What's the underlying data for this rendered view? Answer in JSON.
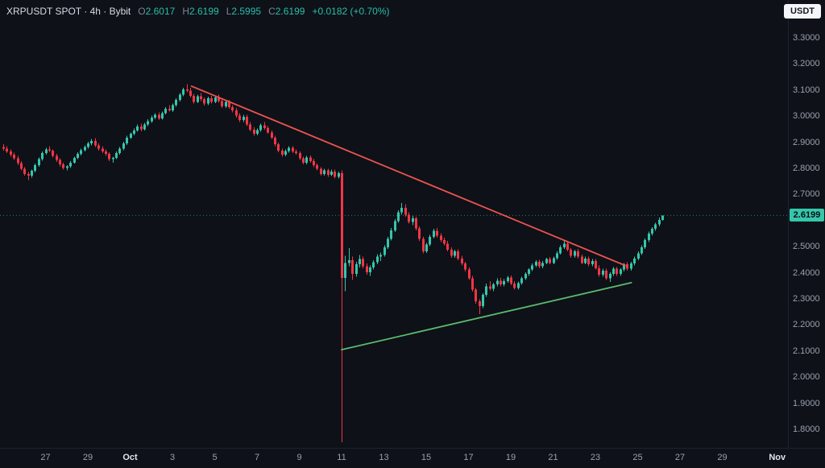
{
  "header": {
    "symbol_text": "XRPUSDT SPOT · 4h · Bybit",
    "ohlc": {
      "o_label": "O",
      "o_value": "2.6017",
      "h_label": "H",
      "h_value": "2.6199",
      "l_label": "L",
      "l_value": "2.5995",
      "c_label": "C",
      "c_value": "2.6199",
      "change": "+0.0182 (+0.70%)"
    }
  },
  "currency_button": {
    "label": "USDT"
  },
  "chart_data": {
    "type": "candlestick",
    "symbol": "XRPUSDT",
    "market": "SPOT",
    "exchange": "Bybit",
    "interval": "4h",
    "last_price": 2.6199,
    "last_price_label": "2.6199",
    "candles_per_day": 6,
    "price_axis": {
      "min": 1.729,
      "max": 3.445,
      "ticks": [
        {
          "value": 3.3,
          "label": "3.3000"
        },
        {
          "value": 3.2,
          "label": "3.2000"
        },
        {
          "value": 3.1,
          "label": "3.1000"
        },
        {
          "value": 3.0,
          "label": "3.0000"
        },
        {
          "value": 2.9,
          "label": "2.9000"
        },
        {
          "value": 2.8,
          "label": "2.8000"
        },
        {
          "value": 2.7,
          "label": "2.7000"
        },
        {
          "value": 2.5,
          "label": "2.5000"
        },
        {
          "value": 2.4,
          "label": "2.4000"
        },
        {
          "value": 2.3,
          "label": "2.3000"
        },
        {
          "value": 2.2,
          "label": "2.2000"
        },
        {
          "value": 2.1,
          "label": "2.1000"
        },
        {
          "value": 2.0,
          "label": "2.0000"
        },
        {
          "value": 1.9,
          "label": "1.9000"
        },
        {
          "value": 1.8,
          "label": "1.8000"
        }
      ]
    },
    "time_axis": {
      "ticks": [
        {
          "label": "27",
          "day": 2
        },
        {
          "label": "29",
          "day": 4
        },
        {
          "label": "Oct",
          "day": 6,
          "major": true
        },
        {
          "label": "3",
          "day": 8
        },
        {
          "label": "5",
          "day": 10
        },
        {
          "label": "7",
          "day": 12
        },
        {
          "label": "9",
          "day": 14
        },
        {
          "label": "11",
          "day": 16
        },
        {
          "label": "13",
          "day": 18
        },
        {
          "label": "15",
          "day": 20
        },
        {
          "label": "17",
          "day": 22
        },
        {
          "label": "19",
          "day": 24
        },
        {
          "label": "21",
          "day": 26
        },
        {
          "label": "23",
          "day": 28
        },
        {
          "label": "25",
          "day": 30
        },
        {
          "label": "27",
          "day": 32
        },
        {
          "label": "29",
          "day": 34
        },
        {
          "label": "Nov",
          "day": 36.6,
          "major": true
        }
      ]
    },
    "trendlines": [
      {
        "name": "descending-trendline",
        "color": "#ef5350",
        "from": {
          "day": 8.9,
          "price": 3.115
        },
        "to": {
          "day": 29.4,
          "price": 2.428
        }
      },
      {
        "name": "ascending-trendline",
        "color": "#5bba6f",
        "from": {
          "day": 16.0,
          "price": 2.105
        },
        "to": {
          "day": 29.7,
          "price": 2.362
        }
      }
    ],
    "colors": {
      "up": "#34c7ab",
      "down": "#f23645",
      "last_price_line": "#34c7ab",
      "up_text": "#2abda8"
    },
    "candles": [
      [
        2.882,
        2.892,
        2.868,
        2.875
      ],
      [
        2.875,
        2.885,
        2.858,
        2.865
      ],
      [
        2.865,
        2.872,
        2.845,
        2.852
      ],
      [
        2.852,
        2.86,
        2.832,
        2.838
      ],
      [
        2.838,
        2.848,
        2.812,
        2.82
      ],
      [
        2.82,
        2.828,
        2.792,
        2.798
      ],
      [
        2.798,
        2.805,
        2.772,
        2.778
      ],
      [
        2.778,
        2.786,
        2.755,
        2.772
      ],
      [
        2.772,
        2.795,
        2.765,
        2.79
      ],
      [
        2.79,
        2.818,
        2.785,
        2.812
      ],
      [
        2.812,
        2.842,
        2.806,
        2.836
      ],
      [
        2.836,
        2.865,
        2.83,
        2.858
      ],
      [
        2.858,
        2.878,
        2.852,
        2.872
      ],
      [
        2.872,
        2.885,
        2.862,
        2.868
      ],
      [
        2.868,
        2.872,
        2.842,
        2.848
      ],
      [
        2.848,
        2.855,
        2.825,
        2.832
      ],
      [
        2.832,
        2.838,
        2.808,
        2.815
      ],
      [
        2.815,
        2.822,
        2.795,
        2.802
      ],
      [
        2.802,
        2.812,
        2.792,
        2.808
      ],
      [
        2.808,
        2.828,
        2.802,
        2.822
      ],
      [
        2.822,
        2.845,
        2.818,
        2.84
      ],
      [
        2.84,
        2.862,
        2.835,
        2.856
      ],
      [
        2.856,
        2.875,
        2.85,
        2.87
      ],
      [
        2.87,
        2.888,
        2.865,
        2.882
      ],
      [
        2.882,
        2.902,
        2.876,
        2.895
      ],
      [
        2.895,
        2.912,
        2.888,
        2.905
      ],
      [
        2.905,
        2.915,
        2.882,
        2.888
      ],
      [
        2.888,
        2.895,
        2.868,
        2.875
      ],
      [
        2.875,
        2.885,
        2.858,
        2.865
      ],
      [
        2.865,
        2.872,
        2.848,
        2.855
      ],
      [
        2.855,
        2.862,
        2.828,
        2.835
      ],
      [
        2.835,
        2.845,
        2.822,
        2.84
      ],
      [
        2.84,
        2.865,
        2.835,
        2.858
      ],
      [
        2.858,
        2.882,
        2.852,
        2.875
      ],
      [
        2.875,
        2.902,
        2.87,
        2.895
      ],
      [
        2.895,
        2.925,
        2.89,
        2.918
      ],
      [
        2.918,
        2.938,
        2.912,
        2.932
      ],
      [
        2.932,
        2.952,
        2.926,
        2.945
      ],
      [
        2.945,
        2.968,
        2.94,
        2.96
      ],
      [
        2.96,
        2.972,
        2.942,
        2.95
      ],
      [
        2.95,
        2.975,
        2.945,
        2.968
      ],
      [
        2.968,
        2.988,
        2.962,
        2.98
      ],
      [
        2.98,
        3.002,
        2.975,
        2.995
      ],
      [
        2.995,
        3.012,
        2.988,
        3.005
      ],
      [
        3.005,
        3.015,
        2.985,
        2.992
      ],
      [
        2.992,
        3.018,
        2.986,
        3.012
      ],
      [
        3.012,
        3.035,
        3.006,
        3.028
      ],
      [
        3.028,
        3.042,
        3.018,
        3.022
      ],
      [
        3.022,
        3.048,
        3.016,
        3.042
      ],
      [
        3.042,
        3.068,
        3.036,
        3.062
      ],
      [
        3.062,
        3.088,
        3.056,
        3.082
      ],
      [
        3.082,
        3.108,
        3.076,
        3.102
      ],
      [
        3.102,
        3.122,
        3.092,
        3.098
      ],
      [
        3.098,
        3.108,
        3.072,
        3.078
      ],
      [
        3.078,
        3.085,
        3.048,
        3.055
      ],
      [
        3.055,
        3.082,
        3.05,
        3.076
      ],
      [
        3.076,
        3.088,
        3.058,
        3.065
      ],
      [
        3.065,
        3.072,
        3.04,
        3.048
      ],
      [
        3.048,
        3.075,
        3.042,
        3.068
      ],
      [
        3.068,
        3.078,
        3.048,
        3.055
      ],
      [
        3.055,
        3.078,
        3.05,
        3.072
      ],
      [
        3.072,
        3.082,
        3.052,
        3.058
      ],
      [
        3.058,
        3.065,
        3.032,
        3.038
      ],
      [
        3.038,
        3.062,
        3.032,
        3.055
      ],
      [
        3.055,
        3.062,
        3.028,
        3.035
      ],
      [
        3.035,
        3.042,
        3.015,
        3.022
      ],
      [
        3.022,
        3.032,
        2.995,
        3.002
      ],
      [
        3.002,
        3.012,
        2.978,
        2.985
      ],
      [
        2.985,
        3.005,
        2.978,
        2.998
      ],
      [
        2.998,
        3.005,
        2.962,
        2.968
      ],
      [
        2.968,
        2.978,
        2.942,
        2.948
      ],
      [
        2.948,
        2.958,
        2.925,
        2.932
      ],
      [
        2.932,
        2.952,
        2.926,
        2.946
      ],
      [
        2.946,
        2.972,
        2.94,
        2.965
      ],
      [
        2.965,
        2.978,
        2.948,
        2.955
      ],
      [
        2.955,
        2.962,
        2.932,
        2.938
      ],
      [
        2.938,
        2.945,
        2.912,
        2.918
      ],
      [
        2.918,
        2.925,
        2.885,
        2.892
      ],
      [
        2.892,
        2.898,
        2.862,
        2.868
      ],
      [
        2.868,
        2.875,
        2.845,
        2.852
      ],
      [
        2.852,
        2.872,
        2.846,
        2.866
      ],
      [
        2.866,
        2.885,
        2.86,
        2.878
      ],
      [
        2.878,
        2.885,
        2.858,
        2.865
      ],
      [
        2.865,
        2.872,
        2.852,
        2.858
      ],
      [
        2.858,
        2.865,
        2.832,
        2.838
      ],
      [
        2.838,
        2.845,
        2.815,
        2.822
      ],
      [
        2.822,
        2.848,
        2.816,
        2.842
      ],
      [
        2.842,
        2.85,
        2.822,
        2.828
      ],
      [
        2.828,
        2.835,
        2.805,
        2.812
      ],
      [
        2.812,
        2.818,
        2.792,
        2.798
      ],
      [
        2.798,
        2.805,
        2.772,
        2.778
      ],
      [
        2.778,
        2.798,
        2.772,
        2.792
      ],
      [
        2.792,
        2.798,
        2.768,
        2.775
      ],
      [
        2.775,
        2.795,
        2.77,
        2.788
      ],
      [
        2.788,
        2.795,
        2.762,
        2.768
      ],
      [
        2.768,
        2.788,
        2.762,
        2.782
      ],
      [
        2.782,
        2.792,
        1.75,
        2.38
      ],
      [
        2.38,
        2.465,
        2.33,
        2.438
      ],
      [
        2.438,
        2.495,
        2.425,
        2.448
      ],
      [
        2.448,
        2.462,
        2.372,
        2.395
      ],
      [
        2.395,
        2.442,
        2.385,
        2.432
      ],
      [
        2.432,
        2.468,
        2.42,
        2.452
      ],
      [
        2.452,
        2.462,
        2.418,
        2.425
      ],
      [
        2.425,
        2.435,
        2.392,
        2.402
      ],
      [
        2.402,
        2.428,
        2.388,
        2.42
      ],
      [
        2.42,
        2.448,
        2.412,
        2.44
      ],
      [
        2.44,
        2.472,
        2.432,
        2.462
      ],
      [
        2.462,
        2.478,
        2.445,
        2.468
      ],
      [
        2.468,
        2.505,
        2.462,
        2.498
      ],
      [
        2.498,
        2.538,
        2.492,
        2.53
      ],
      [
        2.53,
        2.572,
        2.524,
        2.562
      ],
      [
        2.562,
        2.605,
        2.556,
        2.598
      ],
      [
        2.598,
        2.64,
        2.592,
        2.632
      ],
      [
        2.632,
        2.668,
        2.622,
        2.648
      ],
      [
        2.648,
        2.662,
        2.615,
        2.622
      ],
      [
        2.622,
        2.632,
        2.588,
        2.595
      ],
      [
        2.595,
        2.618,
        2.582,
        2.608
      ],
      [
        2.608,
        2.615,
        2.562,
        2.57
      ],
      [
        2.57,
        2.578,
        2.522,
        2.53
      ],
      [
        2.53,
        2.538,
        2.475,
        2.482
      ],
      [
        2.482,
        2.515,
        2.476,
        2.508
      ],
      [
        2.508,
        2.545,
        2.502,
        2.538
      ],
      [
        2.538,
        2.568,
        2.532,
        2.56
      ],
      [
        2.56,
        2.572,
        2.535,
        2.542
      ],
      [
        2.542,
        2.552,
        2.518,
        2.525
      ],
      [
        2.525,
        2.535,
        2.505,
        2.512
      ],
      [
        2.512,
        2.522,
        2.482,
        2.488
      ],
      [
        2.488,
        2.498,
        2.458,
        2.465
      ],
      [
        2.465,
        2.488,
        2.458,
        2.482
      ],
      [
        2.482,
        2.49,
        2.448,
        2.455
      ],
      [
        2.455,
        2.465,
        2.428,
        2.435
      ],
      [
        2.435,
        2.442,
        2.405,
        2.412
      ],
      [
        2.412,
        2.42,
        2.372,
        2.378
      ],
      [
        2.378,
        2.388,
        2.328,
        2.335
      ],
      [
        2.335,
        2.342,
        2.282,
        2.29
      ],
      [
        2.29,
        2.298,
        2.242,
        2.272
      ],
      [
        2.272,
        2.322,
        2.265,
        2.315
      ],
      [
        2.315,
        2.358,
        2.308,
        2.348
      ],
      [
        2.348,
        2.368,
        2.332,
        2.338
      ],
      [
        2.338,
        2.362,
        2.33,
        2.355
      ],
      [
        2.355,
        2.378,
        2.348,
        2.37
      ],
      [
        2.37,
        2.38,
        2.348,
        2.355
      ],
      [
        2.355,
        2.375,
        2.348,
        2.368
      ],
      [
        2.368,
        2.388,
        2.362,
        2.382
      ],
      [
        2.382,
        2.39,
        2.352,
        2.358
      ],
      [
        2.358,
        2.368,
        2.335,
        2.342
      ],
      [
        2.342,
        2.366,
        2.336,
        2.36
      ],
      [
        2.36,
        2.385,
        2.354,
        2.378
      ],
      [
        2.378,
        2.402,
        2.372,
        2.395
      ],
      [
        2.395,
        2.418,
        2.388,
        2.412
      ],
      [
        2.412,
        2.435,
        2.406,
        2.428
      ],
      [
        2.428,
        2.448,
        2.422,
        2.442
      ],
      [
        2.442,
        2.45,
        2.418,
        2.425
      ],
      [
        2.425,
        2.445,
        2.418,
        2.438
      ],
      [
        2.438,
        2.458,
        2.432,
        2.452
      ],
      [
        2.452,
        2.46,
        2.432,
        2.438
      ],
      [
        2.438,
        2.462,
        2.432,
        2.456
      ],
      [
        2.456,
        2.482,
        2.45,
        2.475
      ],
      [
        2.475,
        2.505,
        2.47,
        2.498
      ],
      [
        2.498,
        2.522,
        2.492,
        2.512
      ],
      [
        2.512,
        2.52,
        2.482,
        2.488
      ],
      [
        2.488,
        2.495,
        2.458,
        2.465
      ],
      [
        2.465,
        2.488,
        2.458,
        2.482
      ],
      [
        2.482,
        2.492,
        2.455,
        2.462
      ],
      [
        2.462,
        2.47,
        2.432,
        2.438
      ],
      [
        2.438,
        2.462,
        2.432,
        2.455
      ],
      [
        2.455,
        2.462,
        2.425,
        2.432
      ],
      [
        2.432,
        2.452,
        2.425,
        2.445
      ],
      [
        2.445,
        2.452,
        2.412,
        2.418
      ],
      [
        2.418,
        2.428,
        2.385,
        2.392
      ],
      [
        2.392,
        2.415,
        2.385,
        2.408
      ],
      [
        2.408,
        2.415,
        2.372,
        2.378
      ],
      [
        2.378,
        2.402,
        2.365,
        2.395
      ],
      [
        2.395,
        2.422,
        2.388,
        2.415
      ],
      [
        2.415,
        2.422,
        2.388,
        2.395
      ],
      [
        2.395,
        2.418,
        2.388,
        2.412
      ],
      [
        2.412,
        2.438,
        2.405,
        2.432
      ],
      [
        2.432,
        2.44,
        2.408,
        2.415
      ],
      [
        2.415,
        2.442,
        2.408,
        2.435
      ],
      [
        2.435,
        2.462,
        2.428,
        2.455
      ],
      [
        2.455,
        2.482,
        2.448,
        2.475
      ],
      [
        2.475,
        2.505,
        2.468,
        2.498
      ],
      [
        2.498,
        2.532,
        2.492,
        2.525
      ],
      [
        2.525,
        2.558,
        2.518,
        2.55
      ],
      [
        2.55,
        2.575,
        2.542,
        2.568
      ],
      [
        2.568,
        2.592,
        2.56,
        2.585
      ],
      [
        2.585,
        2.612,
        2.578,
        2.602
      ],
      [
        2.6017,
        2.6199,
        2.5995,
        2.6199
      ]
    ]
  }
}
